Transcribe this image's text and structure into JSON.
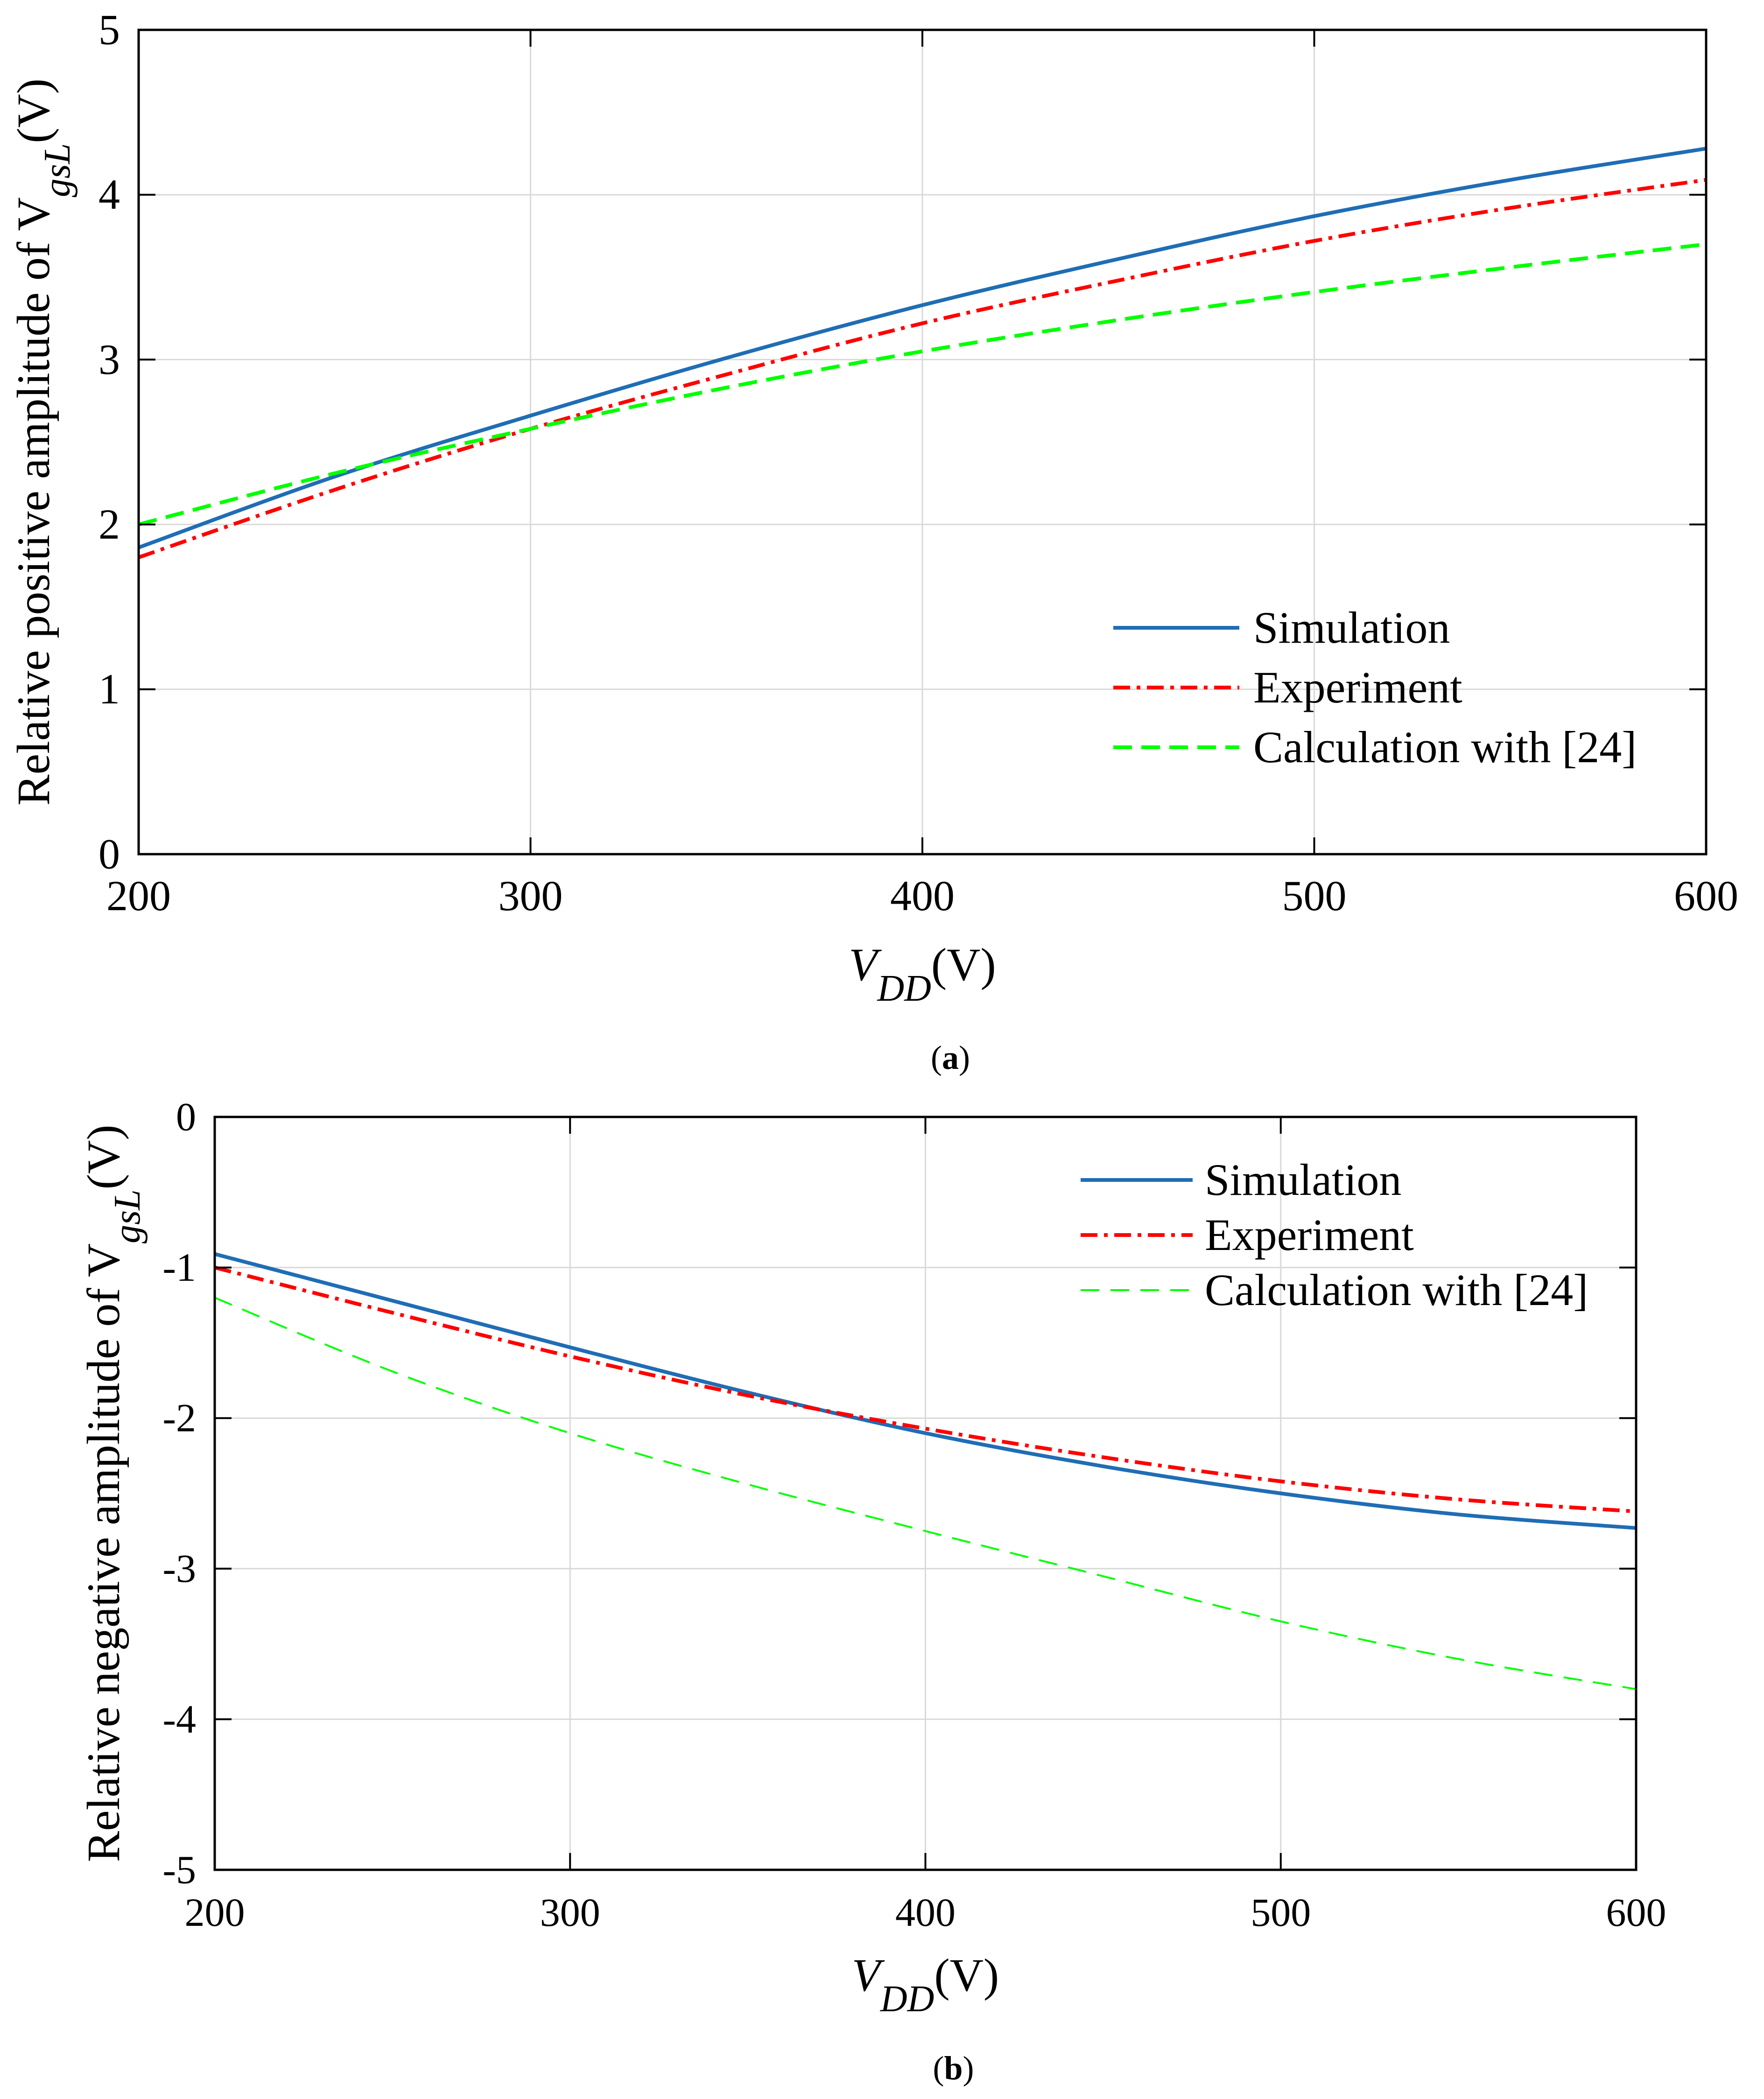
{
  "chart_data": [
    {
      "type": "line",
      "panel": "a",
      "xlim": [
        200,
        600
      ],
      "ylim": [
        0,
        5
      ],
      "x_ticks": [
        "200",
        "300",
        "400",
        "500",
        "600"
      ],
      "y_ticks": [
        "0",
        "1",
        "2",
        "3",
        "4",
        "5"
      ],
      "xlabel": {
        "main": "V",
        "sub": "DD",
        "unit": "(V)"
      },
      "ylabel": {
        "main": "Relative positive amplitude of V",
        "sub": "gsL",
        "unit": "(V)"
      },
      "grid": true,
      "legend_position": "bottom-right",
      "caption": {
        "open": "(",
        "letter": "a",
        "close": ")"
      },
      "series": [
        {
          "name": "Simulation",
          "color": "#1f6db5",
          "style": "solid",
          "x": [
            200,
            250,
            300,
            350,
            400,
            450,
            500,
            550,
            600
          ],
          "y": [
            1.86,
            2.29,
            2.66,
            3.01,
            3.33,
            3.61,
            3.87,
            4.09,
            4.28
          ]
        },
        {
          "name": "Experiment",
          "color": "#ff0000",
          "style": "dashdot",
          "x": [
            200,
            250,
            300,
            350,
            400,
            450,
            500,
            550,
            600
          ],
          "y": [
            1.8,
            2.21,
            2.58,
            2.91,
            3.22,
            3.48,
            3.72,
            3.92,
            4.09
          ]
        },
        {
          "name": "Calculation with [24]",
          "color": "#00ff00",
          "style": "dashed",
          "x": [
            200,
            250,
            300,
            350,
            400,
            450,
            500,
            550,
            600
          ],
          "y": [
            2.0,
            2.31,
            2.58,
            2.83,
            3.05,
            3.24,
            3.41,
            3.56,
            3.7
          ]
        }
      ]
    },
    {
      "type": "line",
      "panel": "b",
      "xlim": [
        200,
        600
      ],
      "ylim": [
        -5,
        0
      ],
      "x_ticks": [
        "200",
        "300",
        "400",
        "500",
        "600"
      ],
      "y_ticks": [
        "0",
        "-1",
        "-2",
        "-3",
        "-4",
        "-5"
      ],
      "xlabel": {
        "main": "V",
        "sub": "DD",
        "unit": "(V)"
      },
      "ylabel": {
        "main": "Relative negative amplitude of V",
        "sub": "gsL",
        "unit": "(V)"
      },
      "grid": true,
      "legend_position": "top-right",
      "caption": {
        "open": "(",
        "letter": "b",
        "close": ")"
      },
      "series": [
        {
          "name": "Simulation",
          "color": "#1f6db5",
          "style": "solid",
          "x": [
            200,
            250,
            300,
            350,
            400,
            450,
            500,
            550,
            600
          ],
          "y": [
            -0.91,
            -1.22,
            -1.53,
            -1.83,
            -2.1,
            -2.32,
            -2.5,
            -2.64,
            -2.73
          ]
        },
        {
          "name": "Experiment",
          "color": "#ff0000",
          "style": "dashdot",
          "x": [
            200,
            250,
            300,
            350,
            400,
            450,
            500,
            550,
            600
          ],
          "y": [
            -1.0,
            -1.3,
            -1.59,
            -1.85,
            -2.07,
            -2.26,
            -2.42,
            -2.54,
            -2.62
          ]
        },
        {
          "name": "Calculation with [24]",
          "color": "#00ff00",
          "style": "thin-dashed",
          "x": [
            200,
            250,
            300,
            350,
            400,
            450,
            500,
            550,
            600
          ],
          "y": [
            -1.2,
            -1.69,
            -2.1,
            -2.44,
            -2.75,
            -3.05,
            -3.35,
            -3.6,
            -3.8
          ]
        }
      ]
    }
  ]
}
